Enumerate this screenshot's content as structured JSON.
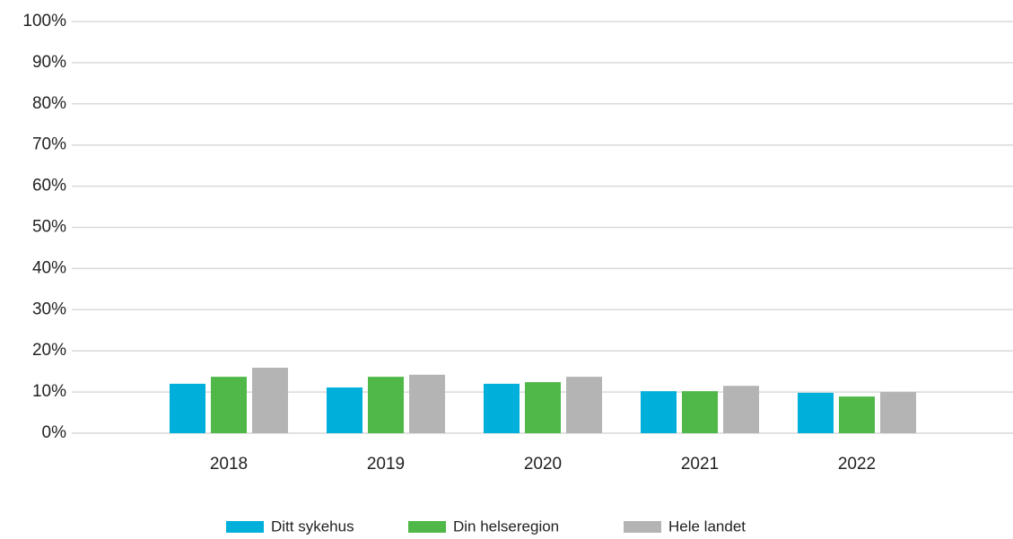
{
  "chart_data": {
    "type": "bar",
    "categories": [
      "2018",
      "2019",
      "2020",
      "2021",
      "2022"
    ],
    "series": [
      {
        "name": "Ditt sykehus",
        "color": "#00b0da",
        "values": [
          12.0,
          11.1,
          12.0,
          10.2,
          9.8
        ]
      },
      {
        "name": "Din helseregion",
        "color": "#50b848",
        "values": [
          13.7,
          13.7,
          12.4,
          10.2,
          8.9
        ]
      },
      {
        "name": "Hele landet",
        "color": "#b4b4b4",
        "values": [
          15.9,
          14.2,
          13.7,
          11.5,
          10.0
        ]
      }
    ],
    "ylim": [
      0,
      100
    ],
    "yticks": [
      {
        "value": 0,
        "label": "0%"
      },
      {
        "value": 10,
        "label": "10%"
      },
      {
        "value": 20,
        "label": "20%"
      },
      {
        "value": 30,
        "label": "30%"
      },
      {
        "value": 40,
        "label": "40%"
      },
      {
        "value": 50,
        "label": "50%"
      },
      {
        "value": 60,
        "label": "60%"
      },
      {
        "value": 70,
        "label": "70%"
      },
      {
        "value": 80,
        "label": "80%"
      },
      {
        "value": 90,
        "label": "90%"
      },
      {
        "value": 100,
        "label": "100%"
      }
    ],
    "grid": true,
    "legend": "bottom"
  }
}
